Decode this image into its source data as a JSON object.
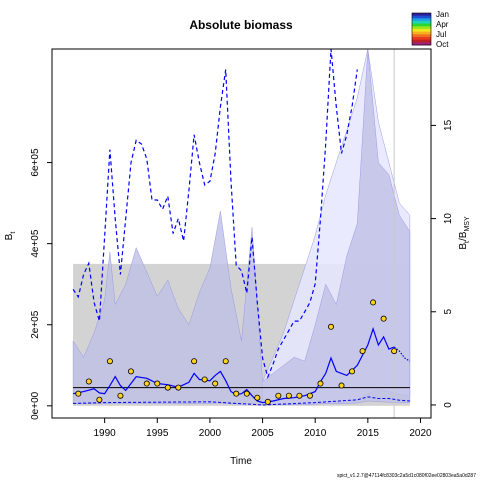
{
  "chart_data": {
    "type": "line",
    "title": "Absolute biomass",
    "xlabel": "Time",
    "ylabel": "B",
    "ylabel_sub": "t",
    "ylabel_right": "B",
    "ylabel_right_sub": "t",
    "ylabel_right_den": "/B",
    "ylabel_right_den_sub": "MSY",
    "xlim": [
      1985.0,
      2021.0
    ],
    "ylim": [
      -30000,
      880000
    ],
    "ylim_right": [
      -0.7,
      19.1
    ],
    "x_ticks": [
      1990,
      1995,
      2000,
      2005,
      2010,
      2015,
      2020
    ],
    "x_tick_labels": [
      "1990",
      "1995",
      "2000",
      "2005",
      "2010",
      "2015",
      "2020"
    ],
    "y_ticks": [
      0,
      200000,
      400000,
      600000
    ],
    "y_tick_labels": [
      "0e+00",
      "2e+05",
      "4e+05",
      "6e+05"
    ],
    "y_ticks_right": [
      0,
      5,
      10,
      15
    ],
    "y_tick_labels_right": [
      "0",
      "5",
      "10",
      "15"
    ],
    "bmsy_band": {
      "lower": 0,
      "upper": 350000,
      "color": "#d3d3d3"
    },
    "reference_line_y": 45000,
    "reference_line_x": 2017.5,
    "series": [
      {
        "style": "biomass-ci",
        "color": "#bfbfe6",
        "x": [
          1987,
          1988,
          1989,
          1990,
          1990.5,
          1991,
          1992,
          1993,
          1994,
          1995,
          1996,
          1997,
          1998,
          1999,
          2000,
          2001,
          2002,
          2003,
          2004,
          2005,
          2006,
          2007,
          2008,
          2009,
          2010,
          2011,
          2012,
          2013,
          2014,
          2015,
          2016,
          2017,
          2018,
          2019
        ],
        "upper": [
          160000,
          120000,
          180000,
          260000,
          380000,
          250000,
          300000,
          390000,
          330000,
          270000,
          310000,
          240000,
          200000,
          280000,
          340000,
          480000,
          290000,
          160000,
          440000,
          60000,
          80000,
          100000,
          120000,
          110000,
          200000,
          300000,
          250000,
          370000,
          450000,
          880000,
          600000,
          570000,
          470000,
          430000
        ],
        "lower": [
          5000,
          5000,
          5000,
          6000,
          6000,
          6000,
          6000,
          6000,
          6000,
          6000,
          6000,
          5000,
          5000,
          6000,
          6000,
          7000,
          5000,
          4000,
          5000,
          2000,
          3000,
          3000,
          3000,
          3000,
          4000,
          6000,
          5000,
          6000,
          7000,
          12000,
          10000,
          9000,
          8000,
          8000
        ]
      },
      {
        "style": "fmsy-ci",
        "color": "#e6e6ff",
        "x": [
          2005,
          2006,
          2007,
          2008,
          2009,
          2010,
          2011,
          2012,
          2013,
          2014,
          2015,
          2016,
          2017,
          2018,
          2019
        ],
        "upper": [
          60000,
          120000,
          180000,
          260000,
          340000,
          420000,
          520000,
          600000,
          680000,
          760000,
          880000,
          700000,
          600000,
          500000,
          470000
        ],
        "lower": [
          3000,
          3000,
          3000,
          4000,
          5000,
          6000,
          7000,
          8000,
          10000,
          14000,
          30000,
          40000,
          35000,
          28000,
          25000
        ]
      },
      {
        "style": "bbmsy-dashed",
        "color": "#0000ff",
        "x": [
          1987,
          1987.5,
          1988,
          1988.5,
          1989,
          1989.5,
          1990,
          1990.5,
          1991,
          1991.5,
          1992,
          1992.5,
          1993,
          1993.5,
          1994,
          1994.5,
          1995,
          1995.5,
          1996,
          1996.5,
          1997,
          1997.5,
          1998,
          1998.5,
          1999,
          1999.5,
          2000,
          2000.5,
          2001,
          2001.5,
          2002,
          2002.5,
          2003,
          2003.5,
          2004,
          2004.5,
          2005,
          2005.5,
          2006,
          2006.5,
          2007,
          2007.5,
          2008,
          2008.5,
          2009,
          2009.5,
          2010,
          2010.5,
          2011,
          2011.5,
          2012,
          2012.5,
          2013,
          2013.5,
          2014
        ],
        "values": [
          6.2,
          5.8,
          7.0,
          7.6,
          5.5,
          4.5,
          9.0,
          13.7,
          10.0,
          7.0,
          10.0,
          13.0,
          14.2,
          14.0,
          13.2,
          11.0,
          11.0,
          10.5,
          11.2,
          9.2,
          10.0,
          8.8,
          11.5,
          14.5,
          13.0,
          11.8,
          12.0,
          13.5,
          16.0,
          18.0,
          12.0,
          7.5,
          7.2,
          6.0,
          9.0,
          5.5,
          2.5,
          1.5,
          2.2,
          3.0,
          3.5,
          4.0,
          4.5,
          4.5,
          5.0,
          5.5,
          6.5,
          10.0,
          14.0,
          19.1,
          16.0,
          13.5,
          14.5,
          16.0,
          18.0
        ],
        "axis": "right"
      },
      {
        "style": "biomass-line",
        "color": "#0000ff",
        "x": [
          1987,
          1988,
          1989,
          1989.5,
          1990,
          1990.5,
          1991,
          1991.5,
          1992,
          1992.5,
          1993,
          1994,
          1995,
          1996,
          1997,
          1998,
          1998.5,
          1999,
          2000,
          2000.5,
          2001,
          2001.5,
          2002,
          2002.5,
          2003,
          2003.5,
          2004,
          2004.5,
          2005,
          2006,
          2007,
          2008,
          2009,
          2010,
          2010.5,
          2011,
          2011.5,
          2012,
          2013,
          2014,
          2015,
          2015.5,
          2016,
          2016.5,
          2017,
          2017.5
        ],
        "values": [
          30000,
          35000,
          42000,
          32000,
          30000,
          50000,
          72000,
          50000,
          38000,
          55000,
          72000,
          68000,
          55000,
          52000,
          46000,
          58000,
          80000,
          65000,
          62000,
          75000,
          85000,
          62000,
          35000,
          28000,
          30000,
          40000,
          25000,
          12000,
          8000,
          12000,
          18000,
          20000,
          25000,
          35000,
          60000,
          80000,
          118000,
          85000,
          75000,
          100000,
          150000,
          190000,
          150000,
          170000,
          140000,
          145000
        ],
        "axis": "left"
      },
      {
        "style": "biomass-forecast",
        "color": "#0000ff",
        "x": [
          2017.5,
          2018,
          2018.5,
          2019
        ],
        "values": [
          145000,
          135000,
          118000,
          110000
        ],
        "axis": "left"
      },
      {
        "style": "fmsy-line",
        "color": "#0000ff",
        "x": [
          1987,
          1990,
          1995,
          2000,
          2005,
          2010,
          2014,
          2015,
          2016,
          2017,
          2018,
          2019
        ],
        "values": [
          6000,
          8000,
          9000,
          10000,
          2000,
          8000,
          15000,
          22000,
          18000,
          18000,
          14000,
          12000
        ],
        "axis": "left"
      }
    ],
    "index_points": {
      "x": [
        1987.5,
        1988.5,
        1989.5,
        1990.5,
        1991.5,
        1992.5,
        1994,
        1995,
        1996,
        1997,
        1998.5,
        1999.5,
        2000.5,
        2001.5,
        2002.5,
        2003.5,
        2004.5,
        2005.5,
        2006.5,
        2007.5,
        2008.5,
        2009.5,
        2010.5,
        2011.5,
        2012.5,
        2013.5,
        2014.5,
        2015.5,
        2016.5,
        2017.5
      ],
      "values": [
        30000,
        60000,
        15000,
        110000,
        25000,
        85000,
        55000,
        55000,
        45000,
        45000,
        110000,
        65000,
        55000,
        110000,
        30000,
        30000,
        20000,
        10000,
        25000,
        25000,
        25000,
        25000,
        55000,
        195000,
        50000,
        85000,
        135000,
        255000,
        215000,
        135000
      ],
      "fill": "#ffd21e",
      "stroke": "#000000"
    },
    "legend": {
      "position": "top-right",
      "labels": [
        "Jan",
        "Apr",
        "Jul",
        "Oct"
      ],
      "colors": [
        "#2e1f9b",
        "#1f4fd6",
        "#1fa2e6",
        "#1fd6b0",
        "#2fd62f",
        "#9be61f",
        "#f0e61f",
        "#f5b01f",
        "#f0701f",
        "#e63b1f",
        "#c01f1f",
        "#a01f7a"
      ]
    },
    "footer": "spict_v1.2.7@47114fc8303c2a5d1c080f02ee02803ea5a0d287"
  }
}
